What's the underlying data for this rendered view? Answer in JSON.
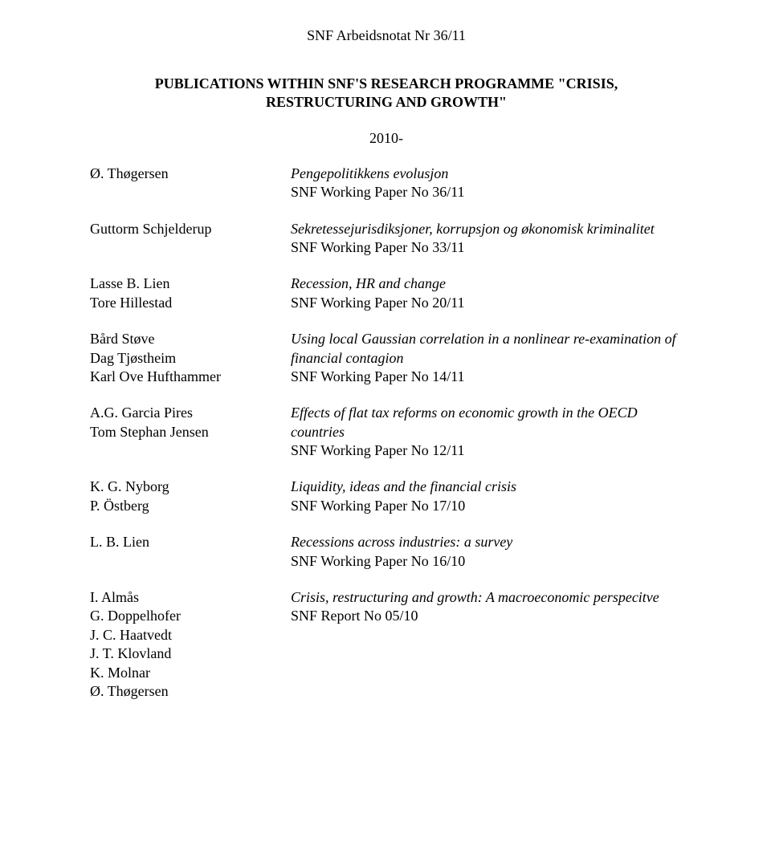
{
  "header": "SNF Arbeidsnotat Nr 36/11",
  "section_title_line1": "PUBLICATIONS WITHIN SNF'S RESEARCH PROGRAMME \"CRISIS,",
  "section_title_line2": "RESTRUCTURING AND GROWTH\"",
  "year": "2010-",
  "entries": [
    {
      "authors": [
        "Ø. Thøgersen"
      ],
      "title": "Pengepolitikkens evolusjon",
      "ref": "SNF Working Paper No 36/11"
    },
    {
      "authors": [
        "Guttorm Schjelderup"
      ],
      "title": "Sekretessejurisdiksjoner, korrupsjon og økonomisk kriminalitet",
      "ref": "SNF Working Paper No 33/11"
    },
    {
      "authors": [
        "Lasse B. Lien",
        "Tore Hillestad"
      ],
      "title": "Recession, HR and change",
      "ref": "SNF Working Paper No 20/11"
    },
    {
      "authors": [
        "Bård Støve",
        "Dag Tjøstheim",
        "Karl Ove Hufthammer"
      ],
      "title": "Using local Gaussian correlation in a nonlinear re-examination of financial contagion",
      "ref": "SNF Working Paper No 14/11"
    },
    {
      "authors": [
        "A.G. Garcia Pires",
        "Tom Stephan Jensen"
      ],
      "title": "Effects of flat tax reforms on economic growth in the OECD countries",
      "ref": "SNF Working Paper No 12/11"
    },
    {
      "authors": [
        "K. G. Nyborg",
        "P. Östberg"
      ],
      "title": "Liquidity, ideas and the financial crisis",
      "ref": "SNF Working Paper No 17/10"
    },
    {
      "authors": [
        "L. B. Lien"
      ],
      "title": "Recessions across industries: a survey",
      "ref": "SNF Working Paper No 16/10"
    },
    {
      "authors": [
        "I. Almås",
        "G. Doppelhofer",
        "J. C. Haatvedt",
        "J. T. Klovland",
        "K. Molnar",
        "Ø. Thøgersen"
      ],
      "title": "Crisis, restructuring and growth: A macroeconomic perspecitve",
      "ref": "SNF Report No 05/10"
    }
  ]
}
